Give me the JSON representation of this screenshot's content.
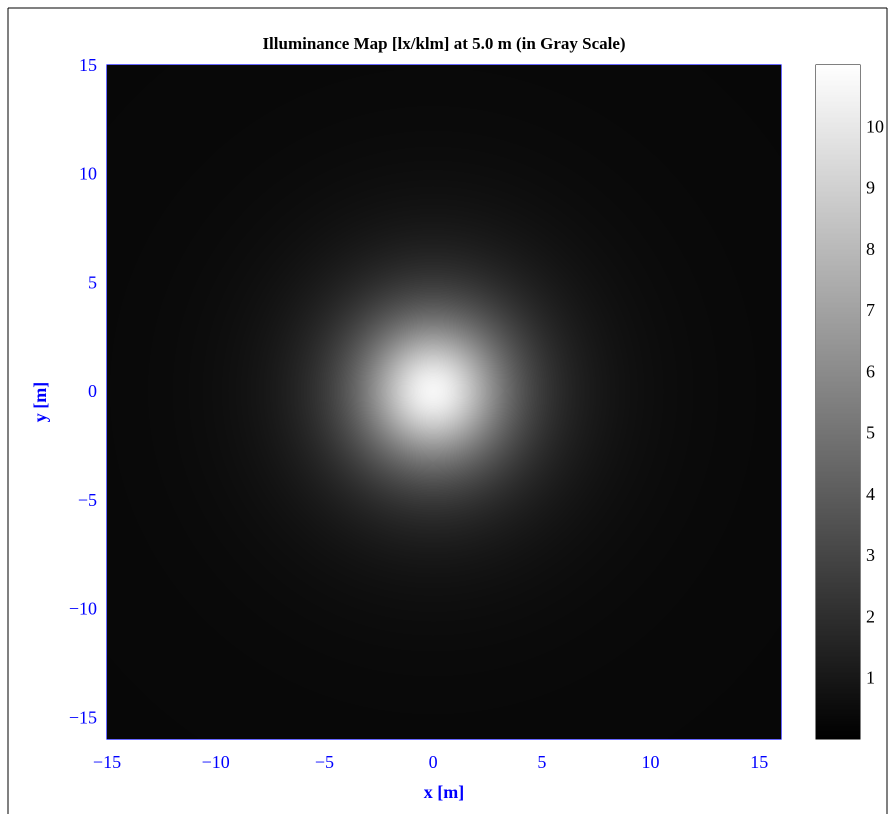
{
  "chart_data": {
    "type": "heatmap",
    "title": "Illuminance Map [lx/klm] at 5.0 m (in Gray Scale)",
    "xlabel": "x [m]",
    "ylabel": "y [m]",
    "xlim": [
      -15,
      16
    ],
    "ylim": [
      -16,
      15
    ],
    "x_ticks": [
      -15,
      -10,
      -5,
      0,
      5,
      10,
      15
    ],
    "x_tick_labels": [
      "−15",
      "−10",
      "−5",
      "0",
      "5",
      "10",
      "15"
    ],
    "y_ticks": [
      15,
      10,
      5,
      0,
      -5,
      -10,
      -15
    ],
    "y_tick_labels": [
      "15",
      "10",
      "5",
      "0",
      "−5",
      "−10",
      "−15"
    ],
    "grid": true,
    "colormap": "gray",
    "colorbar": {
      "range": [
        0,
        11
      ],
      "ticks": [
        1,
        2,
        3,
        4,
        5,
        6,
        7,
        8,
        9,
        10
      ],
      "tick_labels": [
        "1",
        "2",
        "3",
        "4",
        "5",
        "6",
        "7",
        "8",
        "9",
        "10"
      ]
    },
    "distribution": {
      "shape": "radial",
      "center": [
        0,
        0
      ],
      "peak_value": 10.6,
      "mounting_height_m": 5.0,
      "edge_value": 0.3
    }
  },
  "colors": {
    "axis": "#0000ff",
    "title_text": "#000000",
    "grid": "#0000ff",
    "background": "#ffffff"
  }
}
